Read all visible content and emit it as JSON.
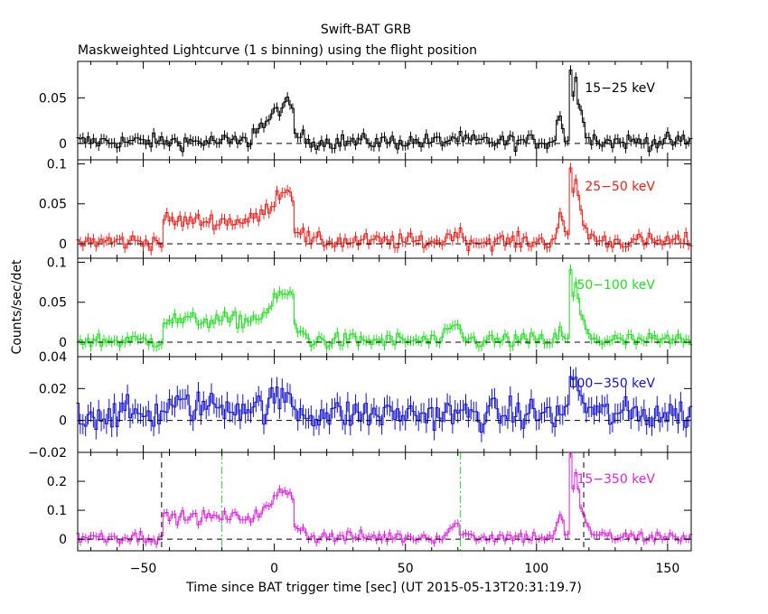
{
  "chart_data": {
    "type": "line",
    "title": "Swift-BAT GRB",
    "subtitle": "Maskweighted Lightcurve (1 s binning) using the flight position",
    "xlabel": "Time since BAT trigger time [sec] (UT 2015-05-13T20:31:19.7)",
    "ylabel": "Counts/sec/det",
    "xlim": [
      -75,
      159
    ],
    "xticks": [
      -50,
      0,
      50,
      100,
      150
    ],
    "xtick_labels": [
      "−50",
      "0",
      "50",
      "100",
      "150"
    ],
    "panels": [
      {
        "band": "15−25 keV",
        "color": "#000000",
        "ylim": [
          -0.018,
          0.09
        ],
        "yticks": [
          0,
          0.05
        ],
        "ytick_labels": [
          "0",
          "0.05"
        ],
        "profile": {
          "base": 0.002,
          "noise": 0.006,
          "hump": 0.014,
          "pre": 0.0,
          "peak0": 0.04,
          "late": 0.004,
          "spike": 0.085,
          "bump110": 0.03
        }
      },
      {
        "band": "25−50 keV",
        "color": "#e8201c",
        "ylim": [
          -0.018,
          0.105
        ],
        "yticks": [
          0,
          0.05,
          0.1
        ],
        "ytick_labels": [
          "0",
          "0.05",
          "0.1"
        ],
        "profile": {
          "base": 0.003,
          "noise": 0.007,
          "hump": 0.03,
          "pre": 0.03,
          "peak0": 0.065,
          "late": 0.012,
          "spike": 0.1,
          "bump110": 0.035
        }
      },
      {
        "band": "50−100 keV",
        "color": "#22dd22",
        "ylim": [
          -0.018,
          0.105
        ],
        "yticks": [
          0,
          0.05,
          0.1
        ],
        "ytick_labels": [
          "0",
          "0.05",
          "0.1"
        ],
        "profile": {
          "base": 0.002,
          "noise": 0.007,
          "hump": 0.028,
          "pre": 0.03,
          "peak0": 0.06,
          "late": 0.018,
          "spike": 0.09,
          "bump110": 0.01
        }
      },
      {
        "band": "100−350 keV",
        "color": "#1010cc",
        "ylim": [
          -0.02,
          0.04
        ],
        "yticks": [
          -0.02,
          0,
          0.02,
          0.04
        ],
        "ytick_labels": [
          "−0.02",
          "0",
          "0.02",
          "0.04"
        ],
        "profile": {
          "base": 0.004,
          "noise": 0.007,
          "hump": 0.004,
          "pre": 0.006,
          "peak0": 0.01,
          "late": 0.0,
          "spike": 0.03,
          "bump110": 0.0
        }
      },
      {
        "band": "15−350 keV",
        "color": "#dd22dd",
        "ylim": [
          -0.04,
          0.3
        ],
        "yticks": [
          0,
          0.1,
          0.2
        ],
        "ytick_labels": [
          "0",
          "0.1",
          "0.2"
        ],
        "profile": {
          "base": 0.008,
          "noise": 0.015,
          "hump": 0.075,
          "pre": 0.08,
          "peak0": 0.16,
          "late": 0.04,
          "spike": 0.29,
          "bump110": 0.07
        },
        "markers": {
          "black_dashed": [
            -43,
            118
          ],
          "green_dashdot": [
            -20,
            71
          ]
        }
      }
    ]
  }
}
